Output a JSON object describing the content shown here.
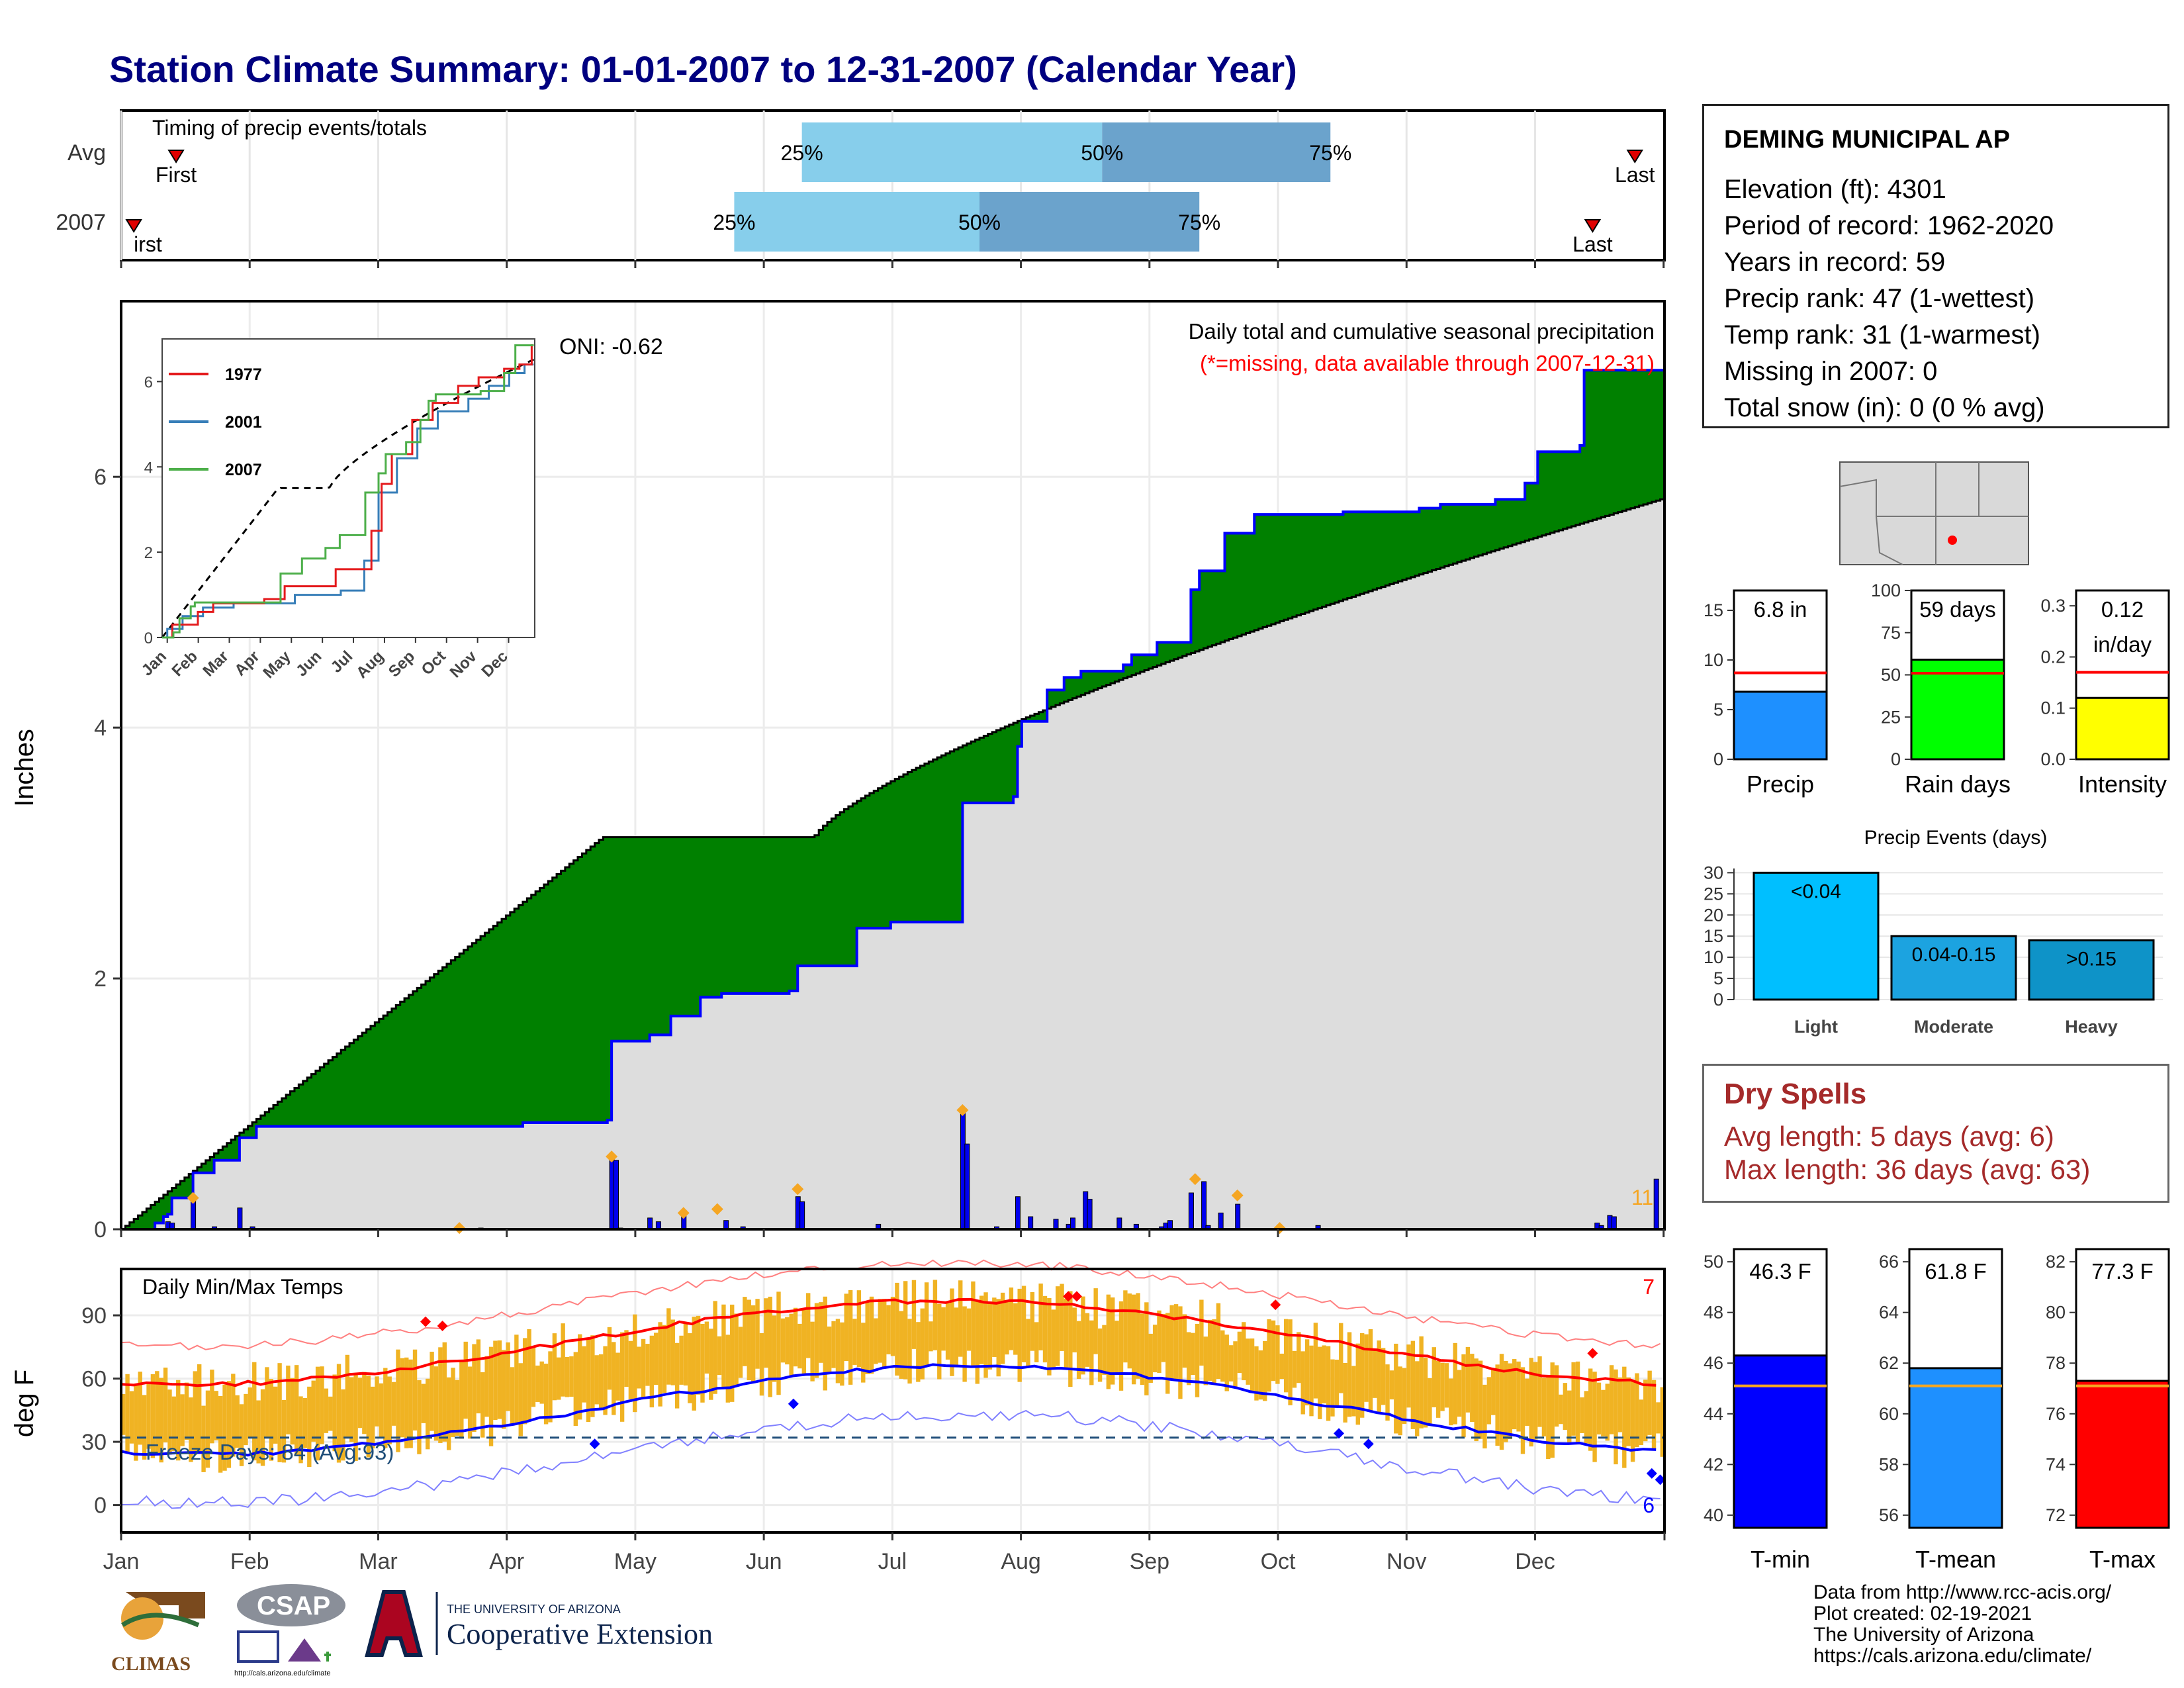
{
  "title": "Station Climate Summary: 01-01-2007 to 12-31-2007 (Calendar Year)",
  "station": {
    "name": "DEMING MUNICIPAL AP",
    "lines": [
      "Elevation (ft): 4301",
      "Period of record: 1962-2020",
      "Years in record: 59",
      "Precip rank: 47 (1-wettest)",
      "Temp rank: 31 (1-warmest)",
      "Missing in 2007: 0",
      "Total snow (in): 0 (0 % avg)"
    ]
  },
  "dry_spells": {
    "heading": "Dry Spells",
    "avg": "Avg length: 5 days (avg: 6)",
    "max": "Max length: 36 days (avg: 63)"
  },
  "credits": [
    "Data from http://www.rcc-acis.org/",
    "Plot created: 02-19-2021",
    "The University of Arizona",
    "https://cals.arizona.edu/climate/"
  ],
  "logos": {
    "climas": "CLIMAS",
    "csap": "CSAP",
    "csap_url": "http://cals.arizona.edu/climate",
    "ua_small": "THE UNIVERSITY OF ARIZONA",
    "ua_big": "Cooperative Extension"
  },
  "colors": {
    "title": "#000080",
    "green": "#008000",
    "blue_line": "#0000ff",
    "light_blue": "#87ceeb",
    "mid_blue": "#6ba3cc",
    "gold": "#f0b323",
    "red": "#ff0000",
    "gray_fill": "#dddddd"
  },
  "chart_data": [
    {
      "type": "bar",
      "panel": "timing",
      "title": "Timing of precip events/totals",
      "rows": [
        "Avg",
        "2007"
      ],
      "avg": {
        "first_day": 13,
        "q25_day": 161,
        "q50_day": 232,
        "q75_day": 286,
        "last_day": 358
      },
      "y2007": {
        "first_day": 3,
        "q25_day": 145,
        "q50_day": 203,
        "q75_day": 255,
        "last_day": 348
      },
      "labels": {
        "first": "First",
        "last": "Last",
        "q25": "25%",
        "q50": "50%",
        "q75": "75%",
        "first_clipped": "irst"
      }
    },
    {
      "type": "area",
      "panel": "precip",
      "title": "Daily total and cumulative seasonal precipitation",
      "subtitle": "(*=missing, data available through 2007-12-31)",
      "oni": "ONI: -0.62",
      "ylabel": "Inches",
      "ylim": [
        0,
        7.4
      ],
      "yticks": [
        0,
        2,
        4,
        6
      ],
      "corner_count": "11",
      "cum2007": [
        [
          0,
          0
        ],
        [
          8,
          0.05
        ],
        [
          10,
          0.1
        ],
        [
          11,
          0.12
        ],
        [
          12,
          0.25
        ],
        [
          17,
          0.45
        ],
        [
          22,
          0.55
        ],
        [
          28,
          0.73
        ],
        [
          32,
          0.82
        ],
        [
          95,
          0.85
        ],
        [
          115,
          0.87
        ],
        [
          116,
          1.5
        ],
        [
          125,
          1.55
        ],
        [
          130,
          1.7
        ],
        [
          137,
          1.85
        ],
        [
          142,
          1.88
        ],
        [
          158,
          1.9
        ],
        [
          160,
          2.1
        ],
        [
          173,
          2.1
        ],
        [
          174,
          2.4
        ],
        [
          182,
          2.45
        ],
        [
          198,
          2.45
        ],
        [
          199,
          3.4
        ],
        [
          211,
          3.45
        ],
        [
          212,
          3.85
        ],
        [
          213,
          4.05
        ],
        [
          219,
          4.3
        ],
        [
          223,
          4.4
        ],
        [
          227,
          4.45
        ],
        [
          237,
          4.5
        ],
        [
          239,
          4.58
        ],
        [
          245,
          4.68
        ],
        [
          253,
          5.1
        ],
        [
          255,
          5.25
        ],
        [
          261,
          5.55
        ],
        [
          268,
          5.7
        ],
        [
          289,
          5.72
        ],
        [
          307,
          5.75
        ],
        [
          312,
          5.78
        ],
        [
          325,
          5.82
        ],
        [
          332,
          5.95
        ],
        [
          335,
          6.2
        ],
        [
          345,
          6.25
        ],
        [
          346,
          6.85
        ],
        [
          364,
          6.85
        ]
      ],
      "normal_end": 5.82,
      "daily_bars": [
        [
          11,
          0.06
        ],
        [
          12,
          0.05
        ],
        [
          17,
          0.25
        ],
        [
          22,
          0.02
        ],
        [
          28,
          0.17
        ],
        [
          31,
          0.02
        ],
        [
          80,
          0.01
        ],
        [
          85,
          0.01
        ],
        [
          116,
          0.58
        ],
        [
          117,
          0.55
        ],
        [
          118,
          0.01
        ],
        [
          125,
          0.09
        ],
        [
          127,
          0.06
        ],
        [
          133,
          0.13
        ],
        [
          143,
          0.07
        ],
        [
          147,
          0.02
        ],
        [
          160,
          0.26
        ],
        [
          161,
          0.22
        ],
        [
          179,
          0.04
        ],
        [
          199,
          0.95
        ],
        [
          200,
          0.68
        ],
        [
          207,
          0.02
        ],
        [
          212,
          0.26
        ],
        [
          215,
          0.1
        ],
        [
          221,
          0.08
        ],
        [
          224,
          0.04
        ],
        [
          225,
          0.09
        ],
        [
          228,
          0.3
        ],
        [
          229,
          0.24
        ],
        [
          236,
          0.09
        ],
        [
          240,
          0.04
        ],
        [
          246,
          0.02
        ],
        [
          247,
          0.05
        ],
        [
          248,
          0.07
        ],
        [
          253,
          0.29
        ],
        [
          256,
          0.38
        ],
        [
          257,
          0.03
        ],
        [
          260,
          0.13
        ],
        [
          264,
          0.2
        ],
        [
          274,
          0.01
        ],
        [
          283,
          0.03
        ],
        [
          349,
          0.05
        ],
        [
          350,
          0.03
        ],
        [
          352,
          0.11
        ],
        [
          353,
          0.1
        ],
        [
          363,
          0.4
        ]
      ],
      "event_markers": [
        [
          17,
          0.25
        ],
        [
          80,
          0.01
        ],
        [
          116,
          0.58
        ],
        [
          133,
          0.13
        ],
        [
          141,
          0.16
        ],
        [
          160,
          0.32
        ],
        [
          199,
          0.95
        ],
        [
          254,
          0.4
        ],
        [
          264,
          0.27
        ],
        [
          274,
          0.01
        ]
      ]
    },
    {
      "type": "line",
      "panel": "inset",
      "series": [
        {
          "name": "1977",
          "color": "#e41a1c"
        },
        {
          "name": "2001",
          "color": "#377eb8"
        },
        {
          "name": "2007",
          "color": "#4daf4a"
        }
      ],
      "yticks": [
        0,
        2,
        4,
        6
      ],
      "months": [
        "Jan",
        "Feb",
        "Mar",
        "Apr",
        "May",
        "Jun",
        "Jul",
        "Aug",
        "Sep",
        "Oct",
        "Nov",
        "Dec"
      ]
    },
    {
      "type": "bar",
      "panel": "summary_precip",
      "items": [
        {
          "label": "Precip",
          "value": 6.8,
          "value_label": "6.8 in",
          "avg": 8.7,
          "ylim": [
            0,
            17
          ],
          "yticks": [
            0,
            5,
            10,
            15
          ],
          "color": "#1e90ff"
        },
        {
          "label": "Rain days",
          "value": 59,
          "value_label": "59 days",
          "avg": 51,
          "ylim": [
            0,
            100
          ],
          "yticks": [
            0,
            25,
            50,
            75,
            100
          ],
          "color": "#00ff00"
        },
        {
          "label": "Intensity",
          "value": 0.12,
          "value_label": "0.12 in/day",
          "avg": 0.17,
          "ylim": [
            0,
            0.33
          ],
          "yticks": [
            "0.0",
            "0.1",
            "0.2",
            "0.3"
          ],
          "color": "#ffff00"
        }
      ]
    },
    {
      "type": "bar",
      "panel": "precip_events",
      "title": "Precip Events (days)",
      "categories": [
        "Light",
        "Moderate",
        "Heavy"
      ],
      "bar_labels": [
        "<0.04",
        "0.04-0.15",
        ">0.15"
      ],
      "values": [
        30,
        15,
        14
      ],
      "colors": [
        "#00bfff",
        "#1ca3e0",
        "#0e93c8"
      ],
      "ylim": [
        0,
        31
      ],
      "yticks": [
        0,
        5,
        10,
        15,
        20,
        25,
        30
      ]
    },
    {
      "type": "line",
      "panel": "temps",
      "title": "Daily Min/Max Temps",
      "ylabel": "deg F",
      "ylim": [
        -13,
        112
      ],
      "yticks": [
        0,
        30,
        60,
        90
      ],
      "freeze_label": "Freeze Days: 84 (Avg:93)",
      "freeze_line": 32,
      "max_count": "7",
      "min_count": "6",
      "months": [
        "Jan",
        "Feb",
        "Mar",
        "Apr",
        "May",
        "Jun",
        "Jul",
        "Aug",
        "Sep",
        "Oct",
        "Nov",
        "Dec"
      ]
    },
    {
      "type": "bar",
      "panel": "summary_temps",
      "items": [
        {
          "label": "T-min",
          "value": 46.3,
          "value_label": "46.3 F",
          "avg": 45.1,
          "ylim": [
            39.5,
            50.5
          ],
          "yticks": [
            40,
            42,
            44,
            46,
            48,
            50
          ],
          "color": "#0000ff"
        },
        {
          "label": "T-mean",
          "value": 61.8,
          "value_label": "61.8 F",
          "avg": 61.1,
          "ylim": [
            55.5,
            66.5
          ],
          "yticks": [
            56,
            58,
            60,
            62,
            64,
            66
          ],
          "color": "#1e90ff"
        },
        {
          "label": "T-max",
          "value": 77.3,
          "value_label": "77.3 F",
          "avg": 77.1,
          "ylim": [
            71.5,
            82.5
          ],
          "yticks": [
            72,
            74,
            76,
            78,
            80,
            82
          ],
          "color": "#ff0000"
        }
      ]
    }
  ]
}
